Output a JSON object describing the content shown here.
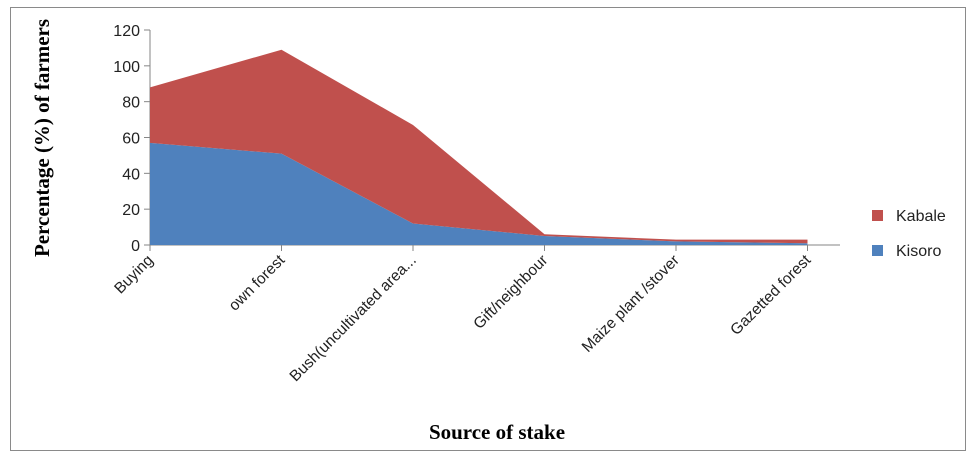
{
  "chart_data": {
    "type": "area",
    "stacked": true,
    "categories": [
      "Buying",
      "own forest",
      "Bush(uncultivated area...",
      "Gift/neighbour",
      "Maize plant /stover",
      "Gazetted forest"
    ],
    "series": [
      {
        "name": "Kisoro",
        "values": [
          57,
          51,
          12,
          5,
          2,
          1
        ],
        "color": "#4f81bd"
      },
      {
        "name": "Kabale",
        "values": [
          31,
          58,
          55,
          1,
          1,
          2
        ],
        "color": "#c0504d"
      }
    ],
    "xlabel": "Source of stake",
    "ylabel": "Percentage (%) of farmers",
    "ylim": [
      0,
      120
    ],
    "yticks": [
      0,
      20,
      40,
      60,
      80,
      100,
      120
    ],
    "grid": false,
    "legend": {
      "position": "right",
      "entries": [
        "Kabale",
        "Kisoro"
      ]
    }
  }
}
